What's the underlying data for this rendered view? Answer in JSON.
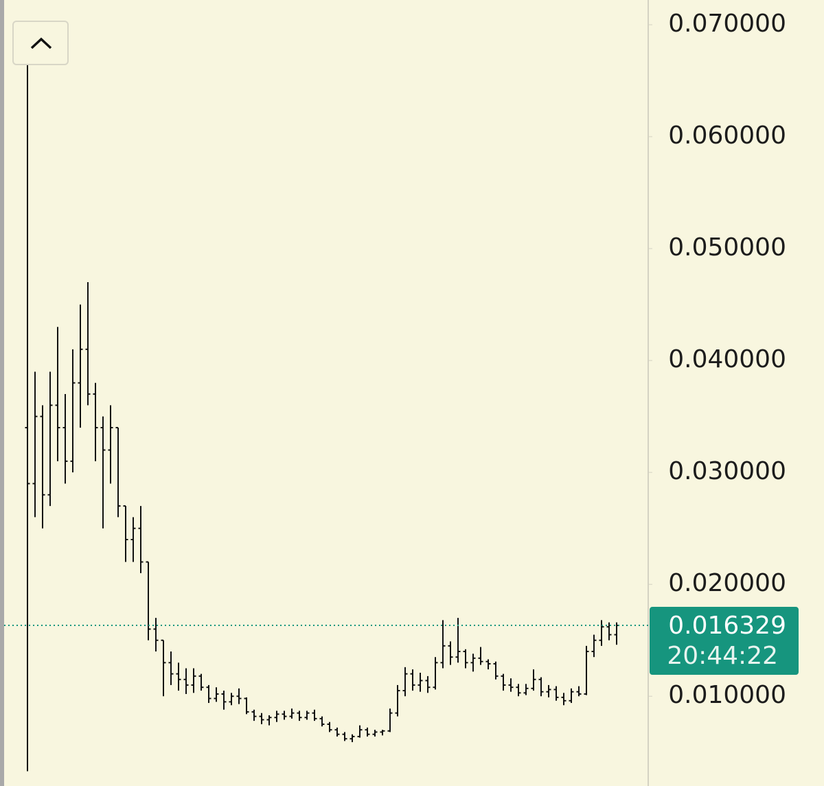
{
  "chart_data": {
    "type": "ohlc",
    "color": "#111111",
    "ylim": [
      0.00198,
      0.07221
    ],
    "yticks": [
      {
        "value": 0.01,
        "label": "0.010000"
      },
      {
        "value": 0.02,
        "label": "0.020000"
      },
      {
        "value": 0.03,
        "label": "0.030000"
      },
      {
        "value": 0.04,
        "label": "0.040000"
      },
      {
        "value": 0.05,
        "label": "0.050000"
      },
      {
        "value": 0.06,
        "label": "0.060000"
      },
      {
        "value": 0.07,
        "label": "0.070000"
      }
    ],
    "last_price": {
      "value": 0.016329,
      "label": "0.016329"
    },
    "countdown": "20:44:22",
    "last_price_color": "#16957e",
    "open": [
      0.034,
      0.029,
      0.035,
      0.028,
      0.036,
      0.034,
      0.031,
      0.038,
      0.041,
      0.037,
      0.034,
      0.032,
      0.034,
      0.027,
      0.024,
      0.025,
      0.022,
      0.016,
      0.015,
      0.013,
      0.012,
      0.0115,
      0.011,
      0.0118,
      0.0108,
      0.0098,
      0.0102,
      0.0095,
      0.01,
      0.0098,
      0.0086,
      0.0082,
      0.0079,
      0.0081,
      0.0084,
      0.0082,
      0.0085,
      0.0081,
      0.0085,
      0.008,
      0.0075,
      0.007,
      0.0066,
      0.0062,
      0.0064,
      0.007,
      0.0066,
      0.0068,
      0.0069,
      0.0085,
      0.0105,
      0.012,
      0.011,
      0.0114,
      0.0108,
      0.013,
      0.0145,
      0.0135,
      0.014,
      0.013,
      0.0134,
      0.0131,
      0.0129,
      0.0118,
      0.011,
      0.0108,
      0.0103,
      0.0107,
      0.0115,
      0.0104,
      0.0106,
      0.0099,
      0.0096,
      0.0104,
      0.0102,
      0.014,
      0.015,
      0.0162,
      0.0155
    ],
    "high": [
      0.07,
      0.039,
      0.036,
      0.039,
      0.043,
      0.037,
      0.041,
      0.045,
      0.047,
      0.038,
      0.035,
      0.036,
      0.034,
      0.027,
      0.026,
      0.027,
      0.022,
      0.017,
      0.015,
      0.014,
      0.013,
      0.0125,
      0.0125,
      0.012,
      0.011,
      0.0108,
      0.0105,
      0.0103,
      0.0107,
      0.0099,
      0.0088,
      0.0085,
      0.0083,
      0.0087,
      0.0087,
      0.0089,
      0.0087,
      0.0087,
      0.0088,
      0.0082,
      0.0077,
      0.0072,
      0.0068,
      0.0066,
      0.0074,
      0.0072,
      0.007,
      0.007,
      0.0089,
      0.011,
      0.0126,
      0.0124,
      0.0121,
      0.0118,
      0.0135,
      0.0168,
      0.0149,
      0.017,
      0.0142,
      0.0138,
      0.0144,
      0.0133,
      0.0131,
      0.012,
      0.0116,
      0.0111,
      0.0111,
      0.0124,
      0.0117,
      0.011,
      0.0109,
      0.0103,
      0.0107,
      0.0109,
      0.0145,
      0.0155,
      0.0168,
      0.0166,
      0.0166
    ],
    "low": [
      0.0033,
      0.026,
      0.025,
      0.027,
      0.031,
      0.029,
      0.03,
      0.034,
      0.036,
      0.031,
      0.025,
      0.029,
      0.026,
      0.022,
      0.022,
      0.021,
      0.015,
      0.014,
      0.01,
      0.011,
      0.0105,
      0.0102,
      0.0103,
      0.0105,
      0.0094,
      0.0095,
      0.0088,
      0.0092,
      0.0093,
      0.0084,
      0.0078,
      0.0075,
      0.0074,
      0.0077,
      0.0079,
      0.008,
      0.0078,
      0.0079,
      0.0078,
      0.0073,
      0.0068,
      0.0064,
      0.006,
      0.0059,
      0.0063,
      0.0064,
      0.0064,
      0.0065,
      0.0068,
      0.0082,
      0.01,
      0.0105,
      0.0104,
      0.0103,
      0.0106,
      0.0125,
      0.0128,
      0.013,
      0.0125,
      0.0122,
      0.0128,
      0.0124,
      0.0115,
      0.0105,
      0.0104,
      0.01,
      0.0101,
      0.0105,
      0.01,
      0.0099,
      0.0096,
      0.0092,
      0.0094,
      0.01,
      0.0101,
      0.0135,
      0.0145,
      0.015,
      0.0146
    ],
    "close": [
      0.029,
      0.035,
      0.028,
      0.036,
      0.034,
      0.031,
      0.038,
      0.041,
      0.037,
      0.034,
      0.032,
      0.034,
      0.027,
      0.024,
      0.025,
      0.022,
      0.016,
      0.015,
      0.013,
      0.012,
      0.0115,
      0.011,
      0.0118,
      0.0108,
      0.0098,
      0.0102,
      0.0095,
      0.01,
      0.0098,
      0.0086,
      0.0082,
      0.0079,
      0.0081,
      0.0084,
      0.0082,
      0.0085,
      0.0081,
      0.0085,
      0.008,
      0.0075,
      0.007,
      0.0066,
      0.0062,
      0.0064,
      0.007,
      0.0066,
      0.0068,
      0.0069,
      0.0085,
      0.0105,
      0.012,
      0.011,
      0.0114,
      0.0108,
      0.013,
      0.0145,
      0.0135,
      0.014,
      0.013,
      0.0134,
      0.0131,
      0.0129,
      0.0118,
      0.011,
      0.0108,
      0.0103,
      0.0107,
      0.0115,
      0.0104,
      0.0106,
      0.0099,
      0.0096,
      0.0104,
      0.0102,
      0.014,
      0.015,
      0.0162,
      0.0155,
      0.016329
    ]
  }
}
